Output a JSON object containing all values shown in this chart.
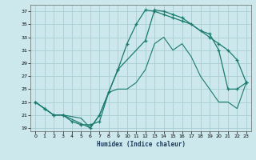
{
  "xlabel": "Humidex (Indice chaleur)",
  "bg_color": "#cce8ec",
  "grid_color": "#a8cdd4",
  "line_color": "#1a7a6e",
  "xlim": [
    -0.5,
    23.5
  ],
  "ylim": [
    18.5,
    38.0
  ],
  "xticks": [
    0,
    1,
    2,
    3,
    4,
    5,
    6,
    7,
    8,
    9,
    10,
    11,
    12,
    13,
    14,
    15,
    16,
    17,
    18,
    19,
    20,
    21,
    22,
    23
  ],
  "yticks": [
    19,
    21,
    23,
    25,
    27,
    29,
    31,
    33,
    35,
    37
  ],
  "curve1_x": [
    0,
    1,
    2,
    3,
    4,
    5,
    6,
    7,
    8,
    9,
    10,
    11,
    12,
    13,
    14,
    15,
    16,
    17,
    18,
    19,
    20,
    21,
    22,
    23
  ],
  "curve1_y": [
    23,
    22,
    21,
    21,
    20,
    19.5,
    19.5,
    20,
    24.5,
    28,
    32,
    35,
    37.2,
    37,
    36.5,
    36,
    35.5,
    35,
    34,
    33.5,
    31,
    25,
    25,
    26
  ],
  "curve2_x": [
    0,
    1,
    2,
    3,
    6,
    7,
    9,
    12,
    13,
    14,
    15,
    16,
    19,
    20,
    21,
    22,
    23
  ],
  "curve2_y": [
    23,
    22,
    21,
    21,
    19,
    21,
    28,
    32.5,
    37.2,
    37,
    36.5,
    36,
    33,
    32,
    31,
    29.5,
    26
  ],
  "curve3_x": [
    0,
    2,
    3,
    5,
    6,
    7,
    8,
    9,
    10,
    11,
    12,
    13,
    14,
    15,
    16,
    17,
    18,
    19,
    20,
    21,
    22,
    23
  ],
  "curve3_y": [
    23,
    21,
    21,
    20.5,
    19,
    21,
    24.5,
    25,
    25,
    26,
    28,
    32,
    33,
    31,
    32,
    30,
    27,
    25,
    23,
    23,
    22,
    26
  ]
}
